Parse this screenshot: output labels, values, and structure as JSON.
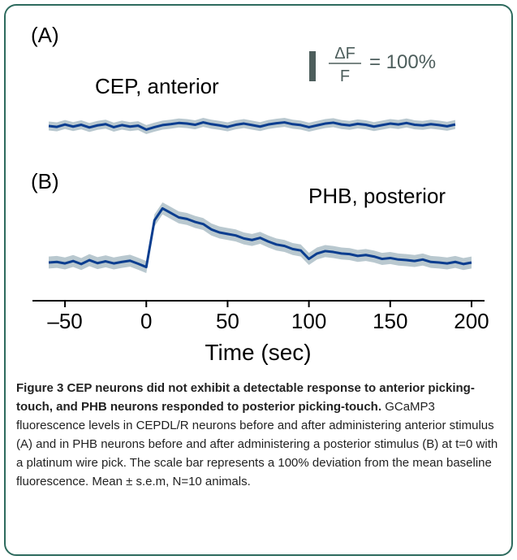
{
  "chart_data": {
    "type": "line",
    "panels": [
      "(A)",
      "(B)"
    ],
    "xlabel": "Time (sec)",
    "xlim": [
      -70,
      208
    ],
    "xticks": [
      {
        "value": -50,
        "label": "–50"
      },
      0,
      50,
      100,
      150,
      200
    ],
    "scale_bar": {
      "value": 100,
      "numerator": "ΔF",
      "denominator": "F",
      "label": "= 100%"
    },
    "series": [
      {
        "name": "CEP, anterior",
        "color": "#0a3d8f",
        "band_color": "#b9c8cf",
        "sem": 15,
        "x": [
          -60,
          -55,
          -50,
          -45,
          -40,
          -35,
          -30,
          -25,
          -20,
          -15,
          -10,
          -5,
          0,
          5,
          10,
          15,
          20,
          25,
          30,
          35,
          40,
          45,
          50,
          55,
          60,
          65,
          70,
          75,
          80,
          85,
          90,
          95,
          100,
          105,
          110,
          115,
          120,
          125,
          130,
          135,
          140,
          145,
          150,
          155,
          160,
          165,
          170,
          175,
          180,
          185,
          190
        ],
        "values": [
          0,
          -3,
          5,
          -2,
          4,
          -5,
          2,
          6,
          -4,
          3,
          -2,
          1,
          -12,
          -4,
          3,
          6,
          10,
          8,
          4,
          12,
          6,
          2,
          -3,
          4,
          8,
          3,
          -2,
          5,
          9,
          12,
          6,
          3,
          -4,
          2,
          8,
          11,
          5,
          2,
          7,
          4,
          -2,
          3,
          8,
          5,
          10,
          4,
          2,
          6,
          3,
          -1,
          5
        ]
      },
      {
        "name": "PHB, posterior",
        "color": "#0a3d8f",
        "band_color": "#b9c8cf",
        "sem": 20,
        "x": [
          -60,
          -55,
          -50,
          -45,
          -40,
          -35,
          -30,
          -25,
          -20,
          -15,
          -10,
          -5,
          0,
          5,
          10,
          15,
          20,
          25,
          30,
          35,
          40,
          45,
          50,
          55,
          60,
          65,
          70,
          75,
          80,
          85,
          90,
          95,
          100,
          105,
          110,
          115,
          120,
          125,
          130,
          135,
          140,
          145,
          150,
          155,
          160,
          165,
          170,
          175,
          180,
          185,
          190,
          195,
          200
        ],
        "values": [
          0,
          2,
          -3,
          5,
          -5,
          8,
          -2,
          4,
          -3,
          2,
          6,
          -4,
          -15,
          140,
          180,
          165,
          150,
          145,
          135,
          128,
          110,
          100,
          95,
          90,
          80,
          75,
          82,
          70,
          60,
          55,
          45,
          40,
          12,
          30,
          38,
          35,
          30,
          28,
          22,
          25,
          20,
          12,
          15,
          10,
          8,
          5,
          10,
          2,
          0,
          -3,
          2,
          -5,
          0
        ]
      }
    ]
  },
  "caption": {
    "title": "Figure 3 CEP neurons did not exhibit a detectable response to anterior picking-touch, and PHB neurons responded to posterior picking-touch.",
    "text": "GCaMP3 fluorescence levels in CEPDL/R neurons before and after administering anterior stimulus (A) and in PHB neurons before and after administering a posterior stimulus (B) at t=0 with a platinum wire pick. The scale bar represents a 100% deviation from the mean baseline fluorescence. Mean ± s.e.m, N=10 animals."
  }
}
